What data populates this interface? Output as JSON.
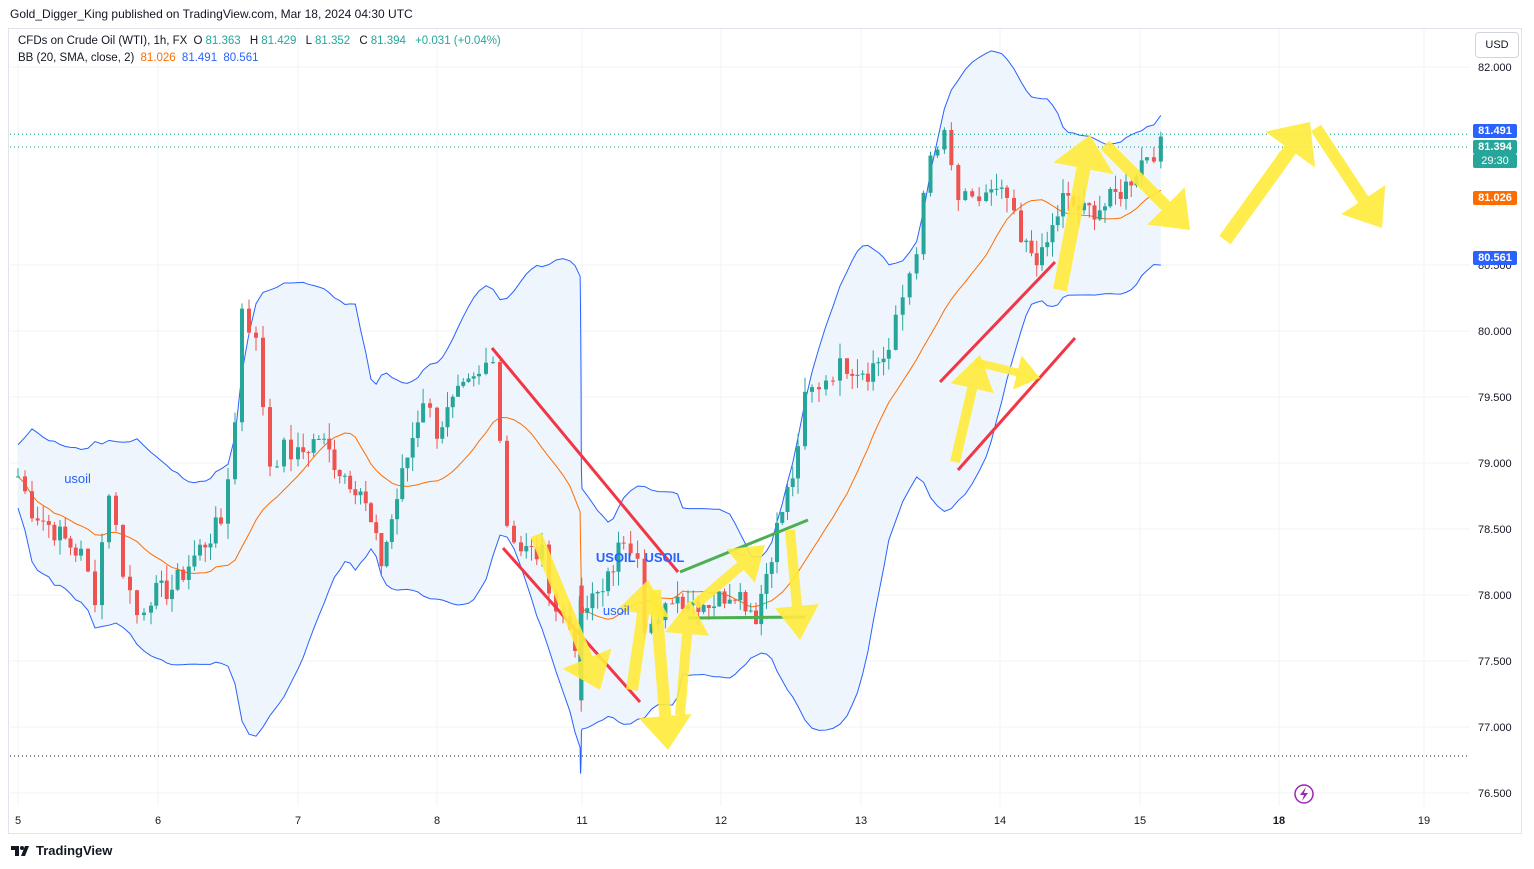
{
  "header": {
    "published": "Gold_Digger_King published on TradingView.com, Mar 18, 2024 04:30 UTC"
  },
  "legend": {
    "symbol": "CFDs on Crude Oil (WTI), 1h, FX",
    "ohlc": {
      "o_label": "O",
      "o": "81.363",
      "h_label": "H",
      "h": "81.429",
      "l_label": "L",
      "l": "81.352",
      "c_label": "C",
      "c": "81.394",
      "change": "+0.031 (+0.04%)"
    },
    "bb": {
      "label": "BB (20, SMA, close, 2)",
      "basis": "81.026",
      "upper": "81.491",
      "lower": "80.561"
    }
  },
  "currency_button": "USD",
  "price_tags": {
    "upper": "81.491",
    "last": "81.394",
    "countdown": "29:30",
    "basis": "81.026",
    "lower": "80.561"
  },
  "colors": {
    "up": "#26a69a",
    "down": "#ef5350",
    "bb_line": "#2962ff",
    "basis": "#ff6d00",
    "fill": "#eaf3fb",
    "arrow": "#ffeb3b",
    "red_line": "#f23645",
    "green_line": "#4caf50"
  },
  "annotations": [
    {
      "text": "usoil",
      "day": 5.33,
      "price": 78.85
    },
    {
      "text": "USOIL",
      "day": 10.45,
      "price": 78.25
    },
    {
      "text": "USOIL",
      "day": 10.1,
      "price": 78.25
    },
    {
      "text": "usoil",
      "day": 10.15,
      "price": 77.85
    }
  ],
  "footer": {
    "brand": "TradingView"
  },
  "chart_data": {
    "type": "candlestick",
    "x_tick_labels": [
      "5",
      "6",
      "7",
      "8",
      "11",
      "12",
      "13",
      "14",
      "15",
      "18",
      "19"
    ],
    "y_tick_labels": [
      "82.000",
      "80.500",
      "80.000",
      "79.500",
      "79.000",
      "78.500",
      "78.000",
      "77.500",
      "77.000",
      "76.500"
    ],
    "ylim": [
      76.4,
      82.2
    ],
    "close_path": [
      [
        5.0,
        78.9
      ],
      [
        5.1,
        78.65
      ],
      [
        5.3,
        78.45
      ],
      [
        5.45,
        78.3
      ],
      [
        5.55,
        78.0
      ],
      [
        5.65,
        78.8
      ],
      [
        5.75,
        78.2
      ],
      [
        5.85,
        77.85
      ],
      [
        5.95,
        78.0
      ],
      [
        6.1,
        78.05
      ],
      [
        6.3,
        78.35
      ],
      [
        6.45,
        78.55
      ],
      [
        6.55,
        79.3
      ],
      [
        6.6,
        80.2
      ],
      [
        6.7,
        79.9
      ],
      [
        6.8,
        79.0
      ],
      [
        6.9,
        79.1
      ],
      [
        7.0,
        79.05
      ],
      [
        7.15,
        79.2
      ],
      [
        7.3,
        78.95
      ],
      [
        7.45,
        78.8
      ],
      [
        7.6,
        78.25
      ],
      [
        7.75,
        78.9
      ],
      [
        7.9,
        79.5
      ],
      [
        8.0,
        79.25
      ],
      [
        8.15,
        79.5
      ],
      [
        8.3,
        79.65
      ],
      [
        8.4,
        79.85
      ],
      [
        8.45,
        79.2
      ],
      [
        8.5,
        78.55
      ],
      [
        8.6,
        78.35
      ],
      [
        8.75,
        78.3
      ],
      [
        8.85,
        77.9
      ],
      [
        8.95,
        77.75
      ],
      [
        9.05,
        77.55
      ],
      [
        9.15,
        77.4
      ],
      [
        9.25,
        77.5
      ],
      [
        9.35,
        77.95
      ],
      [
        9.45,
        78.0
      ],
      [
        9.55,
        77.6
      ],
      [
        9.6,
        77.15
      ],
      [
        9.7,
        78.0
      ],
      [
        9.85,
        77.95
      ],
      [
        10.0,
        77.95
      ],
      [
        10.15,
        78.0
      ],
      [
        10.3,
        78.45
      ],
      [
        10.4,
        78.35
      ],
      [
        10.45,
        77.8
      ],
      [
        10.55,
        77.75
      ],
      [
        10.65,
        78.0
      ],
      [
        10.8,
        77.95
      ],
      [
        10.95,
        77.95
      ],
      [
        11.1,
        78.05
      ],
      [
        11.25,
        77.85
      ],
      [
        11.4,
        78.5
      ],
      [
        11.55,
        79.05
      ],
      [
        11.6,
        79.5
      ],
      [
        11.7,
        79.6
      ],
      [
        11.8,
        79.7
      ],
      [
        11.9,
        79.75
      ],
      [
        12.05,
        79.7
      ],
      [
        12.2,
        79.85
      ],
      [
        12.3,
        80.25
      ],
      [
        12.4,
        80.65
      ],
      [
        12.5,
        81.3
      ],
      [
        12.6,
        81.45
      ],
      [
        12.7,
        81.0
      ],
      [
        12.8,
        80.95
      ],
      [
        12.9,
        81.05
      ],
      [
        13.05,
        81.0
      ],
      [
        13.15,
        80.65
      ],
      [
        13.3,
        80.55
      ],
      [
        13.45,
        81.0
      ],
      [
        13.6,
        80.9
      ],
      [
        13.75,
        80.95
      ],
      [
        13.9,
        81.1
      ],
      [
        14.05,
        81.35
      ],
      [
        14.15,
        81.39
      ]
    ],
    "bollinger": {
      "period": 20,
      "basis_last": 81.026,
      "upper_last": 81.491,
      "lower_last": 80.561
    },
    "last_price": 81.394
  }
}
